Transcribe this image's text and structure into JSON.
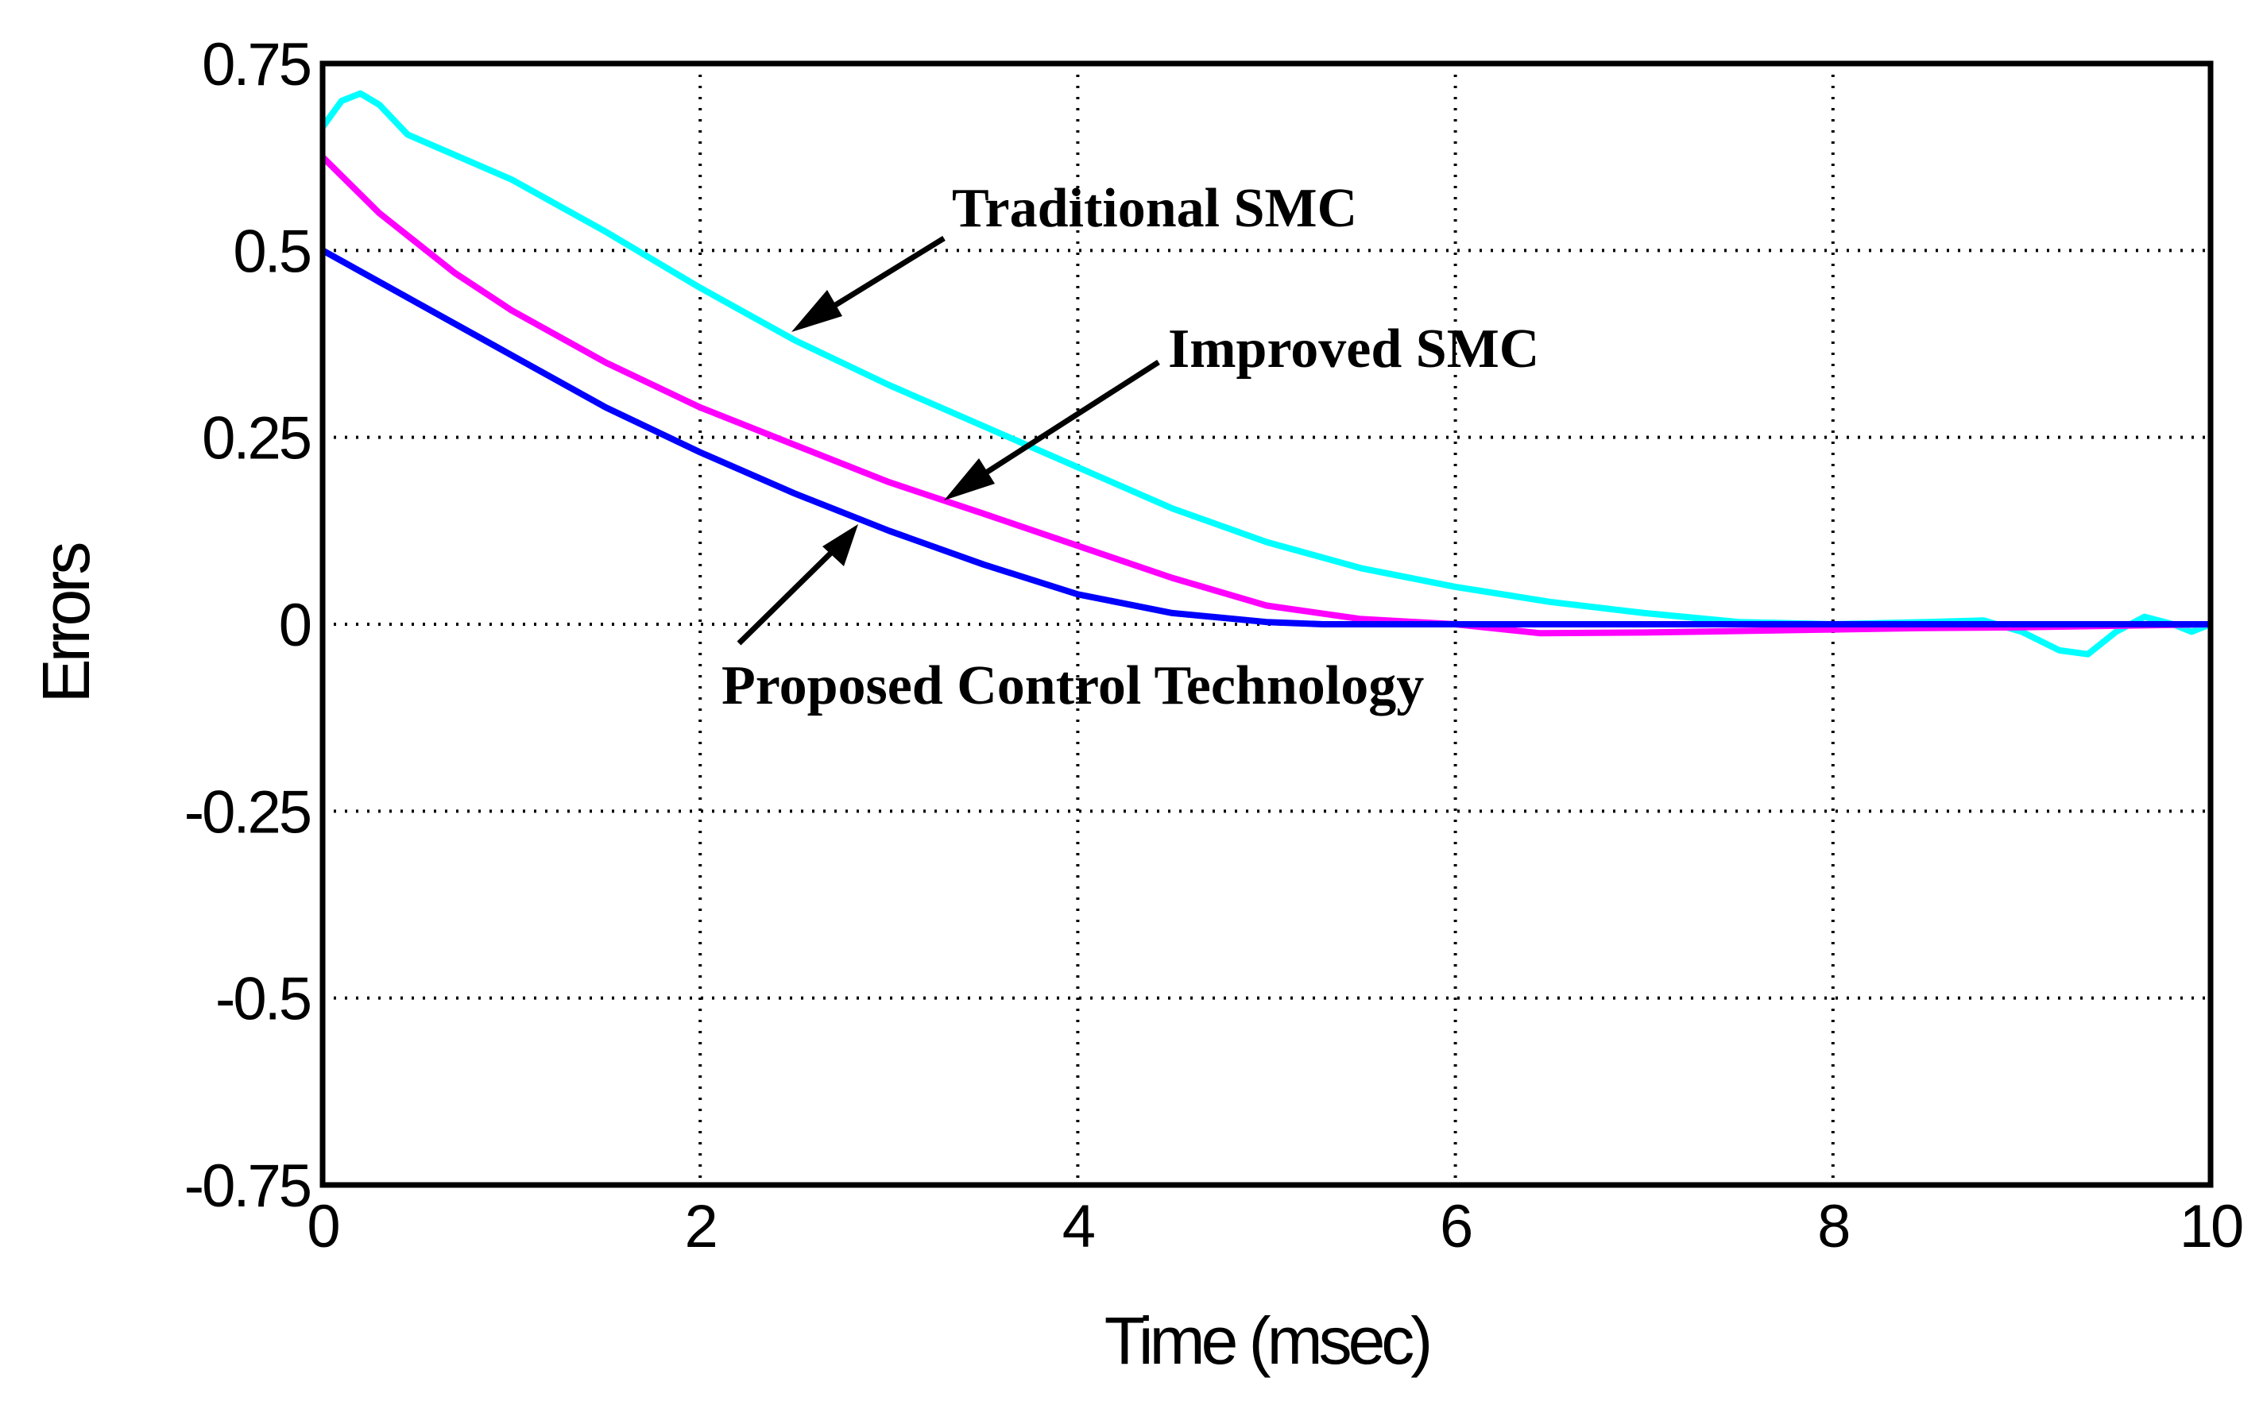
{
  "chart_data": {
    "type": "line",
    "title": "",
    "xlabel": "Time (msec)",
    "ylabel": "Errors",
    "xlim": [
      0,
      10
    ],
    "ylim": [
      -0.75,
      0.75
    ],
    "grid": true,
    "x_ticks": [
      0,
      2,
      4,
      6,
      8,
      10
    ],
    "x_tick_labels": [
      "0",
      "2",
      "4",
      "6",
      "8",
      "10"
    ],
    "y_ticks": [
      0.75,
      0.5,
      0.25,
      0,
      -0.25,
      -0.5,
      -0.75
    ],
    "y_tick_labels": [
      "0.75",
      "0.5",
      "0.25",
      "0",
      "-0.25",
      "-0.5",
      "-0.75"
    ],
    "series": [
      {
        "name": "Traditional SMC",
        "color": "#00ffff",
        "x": [
          0,
          0.1,
          0.2,
          0.3,
          0.45,
          1,
          1.5,
          2,
          2.5,
          3,
          3.5,
          4,
          4.5,
          5,
          5.5,
          6,
          6.5,
          7,
          7.5,
          8,
          8.5,
          8.8,
          9,
          9.2,
          9.35,
          9.5,
          9.65,
          9.8,
          9.9,
          10
        ],
        "y": [
          0.665,
          0.7,
          0.71,
          0.695,
          0.655,
          0.595,
          0.525,
          0.45,
          0.38,
          0.32,
          0.265,
          0.21,
          0.155,
          0.11,
          0.075,
          0.05,
          0.03,
          0.015,
          0.003,
          0,
          0.003,
          0.005,
          -0.01,
          -0.035,
          -0.04,
          -0.01,
          0.01,
          0,
          -0.01,
          0
        ]
      },
      {
        "name": "Improved SMC",
        "color": "#ff00ff",
        "x": [
          0,
          0.3,
          0.7,
          1,
          1.5,
          2,
          2.5,
          3,
          3.5,
          4,
          4.5,
          5,
          5.5,
          6,
          6.45,
          7,
          7.5,
          8,
          8.5,
          9,
          9.5,
          10
        ],
        "y": [
          0.625,
          0.55,
          0.47,
          0.42,
          0.35,
          0.29,
          0.24,
          0.19,
          0.148,
          0.105,
          0.062,
          0.025,
          0.007,
          0,
          -0.012,
          -0.011,
          -0.009,
          -0.007,
          -0.005,
          -0.004,
          -0.002,
          0
        ]
      },
      {
        "name": "Proposed Control Technology",
        "color": "#0000ff",
        "x": [
          0,
          0.5,
          1,
          1.5,
          2,
          2.5,
          3,
          3.5,
          4,
          4.5,
          5,
          5.3,
          5.6,
          6,
          7,
          8,
          9,
          10
        ],
        "y": [
          0.5,
          0.43,
          0.36,
          0.29,
          0.23,
          0.175,
          0.125,
          0.08,
          0.04,
          0.015,
          0.003,
          0,
          0,
          0,
          0,
          0,
          0,
          0
        ]
      }
    ],
    "annotations": [
      {
        "text": "Traditional SMC",
        "target_series": "Traditional SMC"
      },
      {
        "text": "Improved SMC",
        "target_series": "Improved SMC"
      },
      {
        "text": "Proposed Control Technology",
        "target_series": "Proposed Control Technology"
      }
    ]
  }
}
